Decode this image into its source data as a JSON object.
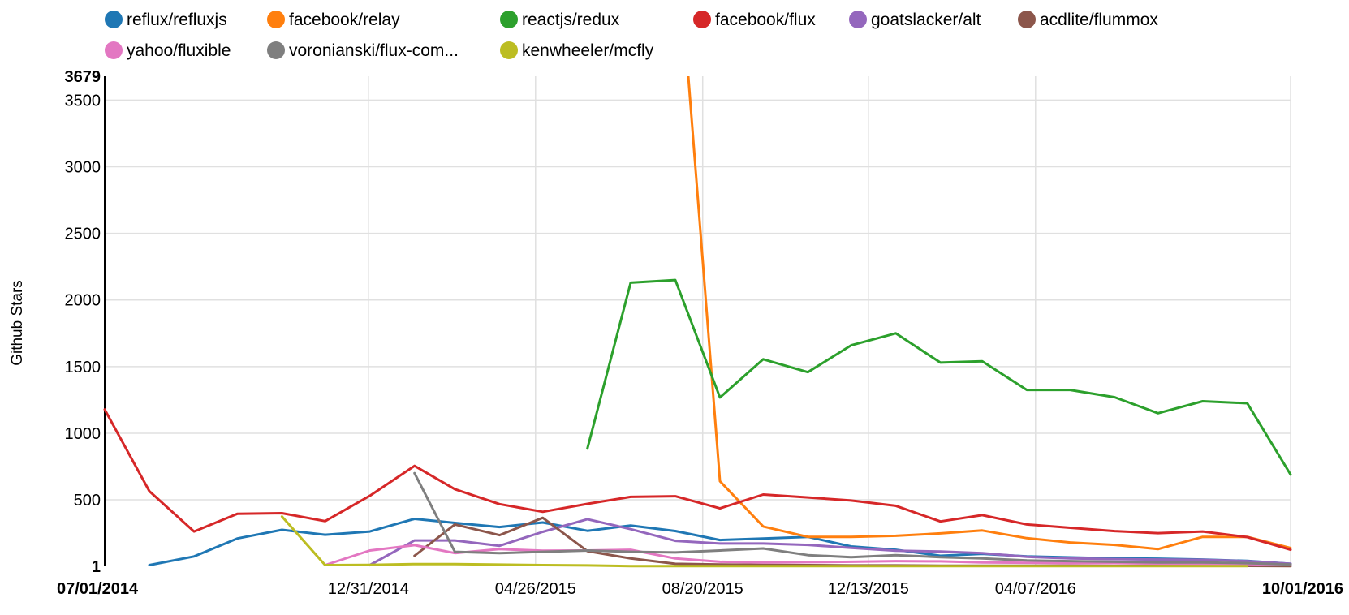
{
  "chart_data": {
    "type": "line",
    "ylabel": "Github Stars",
    "ylim": [
      1,
      3679
    ],
    "y_ticks": [
      {
        "value": 1,
        "label": "1",
        "bold": true
      },
      {
        "value": 500,
        "label": "500",
        "bold": false
      },
      {
        "value": 1000,
        "label": "1000",
        "bold": false
      },
      {
        "value": 1500,
        "label": "1500",
        "bold": false
      },
      {
        "value": 2000,
        "label": "2000",
        "bold": false
      },
      {
        "value": 2500,
        "label": "2500",
        "bold": false
      },
      {
        "value": 3000,
        "label": "3000",
        "bold": false
      },
      {
        "value": 3500,
        "label": "3500",
        "bold": false
      },
      {
        "value": 3679,
        "label": "3679",
        "bold": true
      }
    ],
    "x_range": [
      "2014-07-01",
      "2016-10-01"
    ],
    "x_ticks": [
      {
        "date": "2014-07-01",
        "label": "07/01/2014",
        "bold": true
      },
      {
        "date": "2014-12-31",
        "label": "12/31/2014",
        "bold": false
      },
      {
        "date": "2015-04-26",
        "label": "04/26/2015",
        "bold": false
      },
      {
        "date": "2015-08-20",
        "label": "08/20/2015",
        "bold": false
      },
      {
        "date": "2015-12-13",
        "label": "12/13/2015",
        "bold": false
      },
      {
        "date": "2016-04-07",
        "label": "04/07/2016",
        "bold": false
      },
      {
        "date": "2016-10-01",
        "label": "10/01/2016",
        "bold": true
      }
    ],
    "x_gridlines": [
      "2014-12-31",
      "2015-04-26",
      "2015-08-20",
      "2015-12-13",
      "2016-04-07",
      "2016-10-01"
    ],
    "legend_position": "top",
    "series": [
      {
        "name": "reflux/refluxjs",
        "color": "#1f77b4",
        "points": [
          [
            "2014-08-01",
            10
          ],
          [
            "2014-09-01",
            75
          ],
          [
            "2014-10-01",
            210
          ],
          [
            "2014-11-01",
            275
          ],
          [
            "2014-12-01",
            238
          ],
          [
            "2015-01-01",
            262
          ],
          [
            "2015-02-01",
            357
          ],
          [
            "2015-03-01",
            327
          ],
          [
            "2015-04-01",
            296
          ],
          [
            "2015-05-01",
            330
          ],
          [
            "2015-06-01",
            268
          ],
          [
            "2015-07-01",
            307
          ],
          [
            "2015-08-01",
            266
          ],
          [
            "2015-09-01",
            198
          ],
          [
            "2015-10-01",
            210
          ],
          [
            "2015-11-01",
            222
          ],
          [
            "2015-12-01",
            150
          ],
          [
            "2016-01-01",
            125
          ],
          [
            "2016-02-01",
            80
          ],
          [
            "2016-03-01",
            95
          ],
          [
            "2016-04-01",
            75
          ],
          [
            "2016-05-01",
            68
          ],
          [
            "2016-06-01",
            60
          ],
          [
            "2016-07-01",
            58
          ],
          [
            "2016-08-01",
            52
          ],
          [
            "2016-09-01",
            42
          ],
          [
            "2016-10-01",
            20
          ]
        ]
      },
      {
        "name": "facebook/relay",
        "color": "#ff7f0e",
        "points": [
          [
            "2015-08-10",
            3679
          ],
          [
            "2015-09-01",
            640
          ],
          [
            "2015-10-01",
            300
          ],
          [
            "2015-11-01",
            222
          ],
          [
            "2015-12-01",
            222
          ],
          [
            "2016-01-01",
            230
          ],
          [
            "2016-02-01",
            248
          ],
          [
            "2016-03-01",
            270
          ],
          [
            "2016-04-01",
            212
          ],
          [
            "2016-05-01",
            180
          ],
          [
            "2016-06-01",
            162
          ],
          [
            "2016-07-01",
            130
          ],
          [
            "2016-08-01",
            222
          ],
          [
            "2016-09-01",
            222
          ],
          [
            "2016-10-01",
            138
          ]
        ]
      },
      {
        "name": "reactjs/redux",
        "color": "#2ca02c",
        "points": [
          [
            "2015-06-01",
            885
          ],
          [
            "2015-07-01",
            2130
          ],
          [
            "2015-08-01",
            2150
          ],
          [
            "2015-09-01",
            1268
          ],
          [
            "2015-10-01",
            1555
          ],
          [
            "2015-11-01",
            1458
          ],
          [
            "2015-12-01",
            1660
          ],
          [
            "2016-01-01",
            1750
          ],
          [
            "2016-02-01",
            1530
          ],
          [
            "2016-03-01",
            1540
          ],
          [
            "2016-04-01",
            1325
          ],
          [
            "2016-05-01",
            1325
          ],
          [
            "2016-06-01",
            1270
          ],
          [
            "2016-07-01",
            1150
          ],
          [
            "2016-08-01",
            1240
          ],
          [
            "2016-09-01",
            1225
          ],
          [
            "2016-10-01",
            690
          ]
        ]
      },
      {
        "name": "facebook/flux",
        "color": "#d62728",
        "points": [
          [
            "2014-07-01",
            1178
          ],
          [
            "2014-08-01",
            565
          ],
          [
            "2014-09-01",
            262
          ],
          [
            "2014-10-01",
            395
          ],
          [
            "2014-11-01",
            400
          ],
          [
            "2014-12-01",
            340
          ],
          [
            "2015-01-01",
            530
          ],
          [
            "2015-02-01",
            755
          ],
          [
            "2015-03-01",
            580
          ],
          [
            "2015-04-01",
            468
          ],
          [
            "2015-05-01",
            410
          ],
          [
            "2015-06-01",
            470
          ],
          [
            "2015-07-01",
            522
          ],
          [
            "2015-08-01",
            527
          ],
          [
            "2015-09-01",
            436
          ],
          [
            "2015-10-01",
            540
          ],
          [
            "2015-11-01",
            518
          ],
          [
            "2015-12-01",
            495
          ],
          [
            "2016-01-01",
            455
          ],
          [
            "2016-02-01",
            338
          ],
          [
            "2016-03-01",
            385
          ],
          [
            "2016-04-01",
            315
          ],
          [
            "2016-05-01",
            290
          ],
          [
            "2016-06-01",
            265
          ],
          [
            "2016-07-01",
            250
          ],
          [
            "2016-08-01",
            262
          ],
          [
            "2016-09-01",
            220
          ],
          [
            "2016-10-01",
            125
          ]
        ]
      },
      {
        "name": "goatslacker/alt",
        "color": "#9467bd",
        "points": [
          [
            "2015-01-01",
            10
          ],
          [
            "2015-02-01",
            195
          ],
          [
            "2015-03-01",
            195
          ],
          [
            "2015-04-01",
            155
          ],
          [
            "2015-05-01",
            260
          ],
          [
            "2015-06-01",
            355
          ],
          [
            "2015-07-01",
            280
          ],
          [
            "2015-08-01",
            192
          ],
          [
            "2015-09-01",
            172
          ],
          [
            "2015-10-01",
            172
          ],
          [
            "2015-11-01",
            162
          ],
          [
            "2015-12-01",
            140
          ],
          [
            "2016-01-01",
            118
          ],
          [
            "2016-02-01",
            112
          ],
          [
            "2016-03-01",
            100
          ],
          [
            "2016-04-01",
            72
          ],
          [
            "2016-05-01",
            60
          ],
          [
            "2016-06-01",
            55
          ],
          [
            "2016-07-01",
            52
          ],
          [
            "2016-08-01",
            50
          ],
          [
            "2016-09-01",
            40
          ],
          [
            "2016-10-01",
            20
          ]
        ]
      },
      {
        "name": "acdlite/flummox",
        "color": "#8c564b",
        "points": [
          [
            "2015-02-01",
            80
          ],
          [
            "2015-03-01",
            315
          ],
          [
            "2015-04-01",
            235
          ],
          [
            "2015-05-01",
            365
          ],
          [
            "2015-06-01",
            115
          ],
          [
            "2015-07-01",
            60
          ],
          [
            "2015-08-01",
            20
          ],
          [
            "2015-09-01",
            15
          ],
          [
            "2015-10-01",
            12
          ],
          [
            "2015-11-01",
            10
          ],
          [
            "2015-12-01",
            8
          ],
          [
            "2016-01-01",
            8
          ],
          [
            "2016-02-01",
            6
          ],
          [
            "2016-03-01",
            5
          ],
          [
            "2016-04-01",
            5
          ],
          [
            "2016-05-01",
            5
          ],
          [
            "2016-06-01",
            4
          ],
          [
            "2016-07-01",
            4
          ],
          [
            "2016-08-01",
            4
          ],
          [
            "2016-09-01",
            4
          ],
          [
            "2016-10-01",
            3
          ]
        ]
      },
      {
        "name": "yahoo/fluxible",
        "color": "#e377c2",
        "points": [
          [
            "2014-12-01",
            10
          ],
          [
            "2015-01-01",
            120
          ],
          [
            "2015-02-01",
            160
          ],
          [
            "2015-03-01",
            100
          ],
          [
            "2015-04-01",
            130
          ],
          [
            "2015-05-01",
            118
          ],
          [
            "2015-06-01",
            120
          ],
          [
            "2015-07-01",
            125
          ],
          [
            "2015-08-01",
            60
          ],
          [
            "2015-09-01",
            35
          ],
          [
            "2015-10-01",
            30
          ],
          [
            "2015-11-01",
            32
          ],
          [
            "2015-12-01",
            35
          ],
          [
            "2016-01-01",
            40
          ],
          [
            "2016-02-01",
            38
          ],
          [
            "2016-03-01",
            30
          ],
          [
            "2016-04-01",
            28
          ],
          [
            "2016-05-01",
            25
          ],
          [
            "2016-06-01",
            25
          ],
          [
            "2016-07-01",
            22
          ],
          [
            "2016-08-01",
            20
          ],
          [
            "2016-09-01",
            18
          ],
          [
            "2016-10-01",
            12
          ]
        ]
      },
      {
        "name": "voronianski/flux-com...",
        "color": "#7f7f7f",
        "points": [
          [
            "2015-02-01",
            700
          ],
          [
            "2015-03-01",
            110
          ],
          [
            "2015-04-01",
            100
          ],
          [
            "2015-05-01",
            110
          ],
          [
            "2015-06-01",
            120
          ],
          [
            "2015-07-01",
            110
          ],
          [
            "2015-08-01",
            105
          ],
          [
            "2015-09-01",
            120
          ],
          [
            "2015-10-01",
            135
          ],
          [
            "2015-11-01",
            85
          ],
          [
            "2015-12-01",
            70
          ],
          [
            "2016-01-01",
            85
          ],
          [
            "2016-02-01",
            70
          ],
          [
            "2016-03-01",
            60
          ],
          [
            "2016-04-01",
            45
          ],
          [
            "2016-05-01",
            40
          ],
          [
            "2016-06-01",
            35
          ],
          [
            "2016-07-01",
            30
          ],
          [
            "2016-08-01",
            30
          ],
          [
            "2016-09-01",
            25
          ],
          [
            "2016-10-01",
            15
          ]
        ]
      },
      {
        "name": "kenwheeler/mcfly",
        "color": "#bcbd22",
        "points": [
          [
            "2014-11-01",
            375
          ],
          [
            "2014-12-01",
            10
          ],
          [
            "2015-01-01",
            12
          ],
          [
            "2015-02-01",
            18
          ],
          [
            "2015-03-01",
            18
          ],
          [
            "2015-04-01",
            14
          ],
          [
            "2015-05-01",
            10
          ],
          [
            "2015-06-01",
            8
          ],
          [
            "2015-07-01",
            3
          ],
          [
            "2015-08-01",
            3
          ],
          [
            "2015-09-01",
            3
          ],
          [
            "2015-10-01",
            3
          ],
          [
            "2015-11-01",
            3
          ],
          [
            "2015-12-01",
            3
          ],
          [
            "2016-01-01",
            3
          ],
          [
            "2016-02-01",
            3
          ],
          [
            "2016-03-01",
            3
          ],
          [
            "2016-04-01",
            3
          ],
          [
            "2016-05-01",
            3
          ],
          [
            "2016-06-01",
            3
          ],
          [
            "2016-07-01",
            3
          ],
          [
            "2016-08-01",
            3
          ],
          [
            "2016-09-01",
            3
          ]
        ]
      }
    ]
  }
}
